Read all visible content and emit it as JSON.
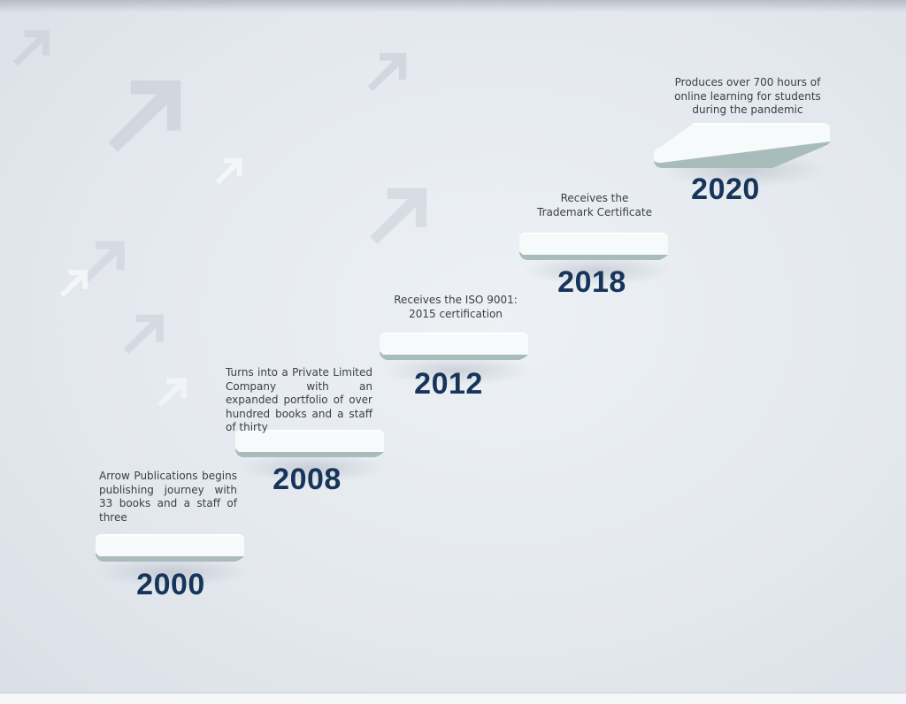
{
  "timeline": [
    {
      "year": "2000",
      "text": "Arrow Publications begins publishing journey with 33 books and a staff of three"
    },
    {
      "year": "2008",
      "text": "Turns into a Private Limited Company with an expanded portfolio of over hundred books and a staff of thirty"
    },
    {
      "year": "2012",
      "text": "Receives the ISO 9001: 2015 certification"
    },
    {
      "year": "2018",
      "text": "Receives the Trademark Certificate"
    },
    {
      "year": "2020",
      "text": "Produces over 700 hours of online learning for students during the pandemic"
    }
  ],
  "colors": {
    "year": "#17355a",
    "text": "#3a3f45",
    "slab_top": "#f7fafa",
    "slab_front": "#a9bcbc",
    "background": "#e3e8ee"
  },
  "decorations": [
    "arrow-icon",
    "arrow-icon",
    "arrow-icon",
    "arrow-icon",
    "arrow-icon",
    "arrow-icon",
    "arrow-icon",
    "arrow-icon",
    "arrow-icon"
  ]
}
